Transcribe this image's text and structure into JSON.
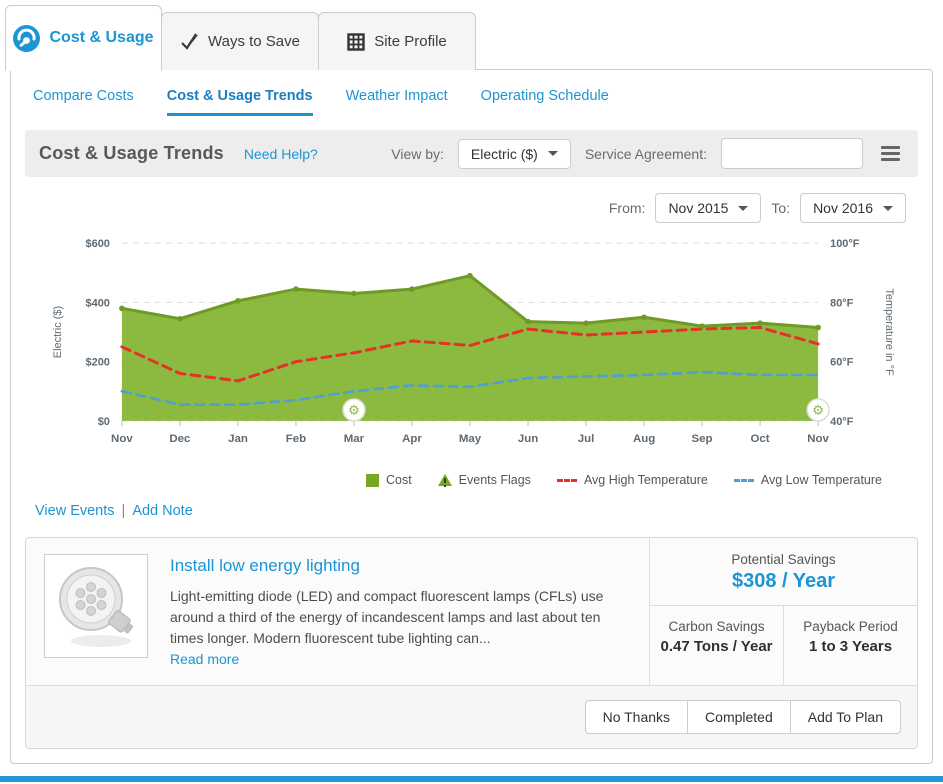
{
  "tabs": [
    {
      "label": "Cost & Usage",
      "active": true
    },
    {
      "label": "Ways to Save",
      "active": false
    },
    {
      "label": "Site Profile",
      "active": false
    }
  ],
  "subtabs": [
    {
      "label": "Compare Costs",
      "active": false
    },
    {
      "label": "Cost & Usage Trends",
      "active": true
    },
    {
      "label": "Weather Impact",
      "active": false
    },
    {
      "label": "Operating Schedule",
      "active": false
    }
  ],
  "toolbar": {
    "title": "Cost & Usage Trends",
    "help_link": "Need Help?",
    "view_by_label": "View by:",
    "view_by_value": "Electric ($)",
    "service_agreement_label": "Service Agreement:",
    "service_agreement_value": ""
  },
  "date_filter": {
    "from_label": "From:",
    "from_value": "Nov 2015",
    "to_label": "To:",
    "to_value": "Nov 2016"
  },
  "chart_data": {
    "type": "area",
    "x": [
      "Nov",
      "Dec",
      "Jan",
      "Feb",
      "Mar",
      "Apr",
      "May",
      "Jun",
      "Jul",
      "Aug",
      "Sep",
      "Oct",
      "Nov"
    ],
    "series": [
      {
        "name": "Cost",
        "type": "area",
        "axis": "left",
        "color": "#8cba41",
        "stroke": "#6f9a23",
        "values": [
          380,
          345,
          405,
          445,
          430,
          445,
          490,
          335,
          330,
          350,
          320,
          330,
          315
        ]
      },
      {
        "name": "Avg High Temperature",
        "type": "dashed-line",
        "axis": "right",
        "color": "#e53228",
        "values": [
          65,
          56,
          53.5,
          60,
          63,
          67,
          65.5,
          71,
          69,
          70,
          71,
          71.5,
          66
        ]
      },
      {
        "name": "Avg Low Temperature",
        "type": "dashed-line",
        "axis": "right",
        "color": "#4f9fd0",
        "values": [
          50,
          45.5,
          45.5,
          47,
          50,
          52,
          51.5,
          54.5,
          55,
          55.5,
          56.5,
          55.5,
          55.5
        ]
      }
    ],
    "events": {
      "name": "Events Flags",
      "marker": "gear",
      "x_indices": [
        4,
        12
      ]
    },
    "left_axis": {
      "label": "Electric ($)",
      "ticks": [
        "$600",
        "$400",
        "$200",
        "$0"
      ],
      "min": 0,
      "max": 600
    },
    "right_axis": {
      "label": "Temperature in °F",
      "ticks": [
        "100°F",
        "80°F",
        "60°F",
        "40°F"
      ],
      "min": 40,
      "max": 100
    },
    "legend": [
      {
        "label": "Cost",
        "swatch": "square",
        "color": "#76a821"
      },
      {
        "label": "Events Flags",
        "swatch": "triangle-warning",
        "color": "#76a821"
      },
      {
        "label": "Avg High Temperature",
        "swatch": "dashes",
        "color": "#e53228"
      },
      {
        "label": "Avg Low Temperature",
        "swatch": "dashes",
        "color": "#4f9fd0"
      }
    ],
    "grid": "dashed-horizontal"
  },
  "chart_links": {
    "view_events": "View Events",
    "separator": "|",
    "add_note": "Add Note"
  },
  "recommendation": {
    "title": "Install low energy lighting",
    "body": "Light-emitting diode (LED) and compact fluorescent lamps (CFLs) use around a third of the energy of incandescent lamps and last about ten times longer. Modern fluorescent tube lighting can...",
    "read_more": "Read more",
    "image": "led-spotlight-photo",
    "potential_savings_label": "Potential Savings",
    "potential_savings_value": "$308 / Year",
    "carbon_savings_label": "Carbon Savings",
    "carbon_savings_value": "0.47 Tons / Year",
    "payback_label": "Payback Period",
    "payback_value": "1 to 3 Years"
  },
  "actions": [
    {
      "label": "No Thanks"
    },
    {
      "label": "Completed"
    },
    {
      "label": "Add To Plan"
    }
  ],
  "colors": {
    "accent_blue": "#1c95d4",
    "cost_green": "#8cba41",
    "high_temp_red": "#e53228",
    "low_temp_blue": "#4f9fd0"
  }
}
